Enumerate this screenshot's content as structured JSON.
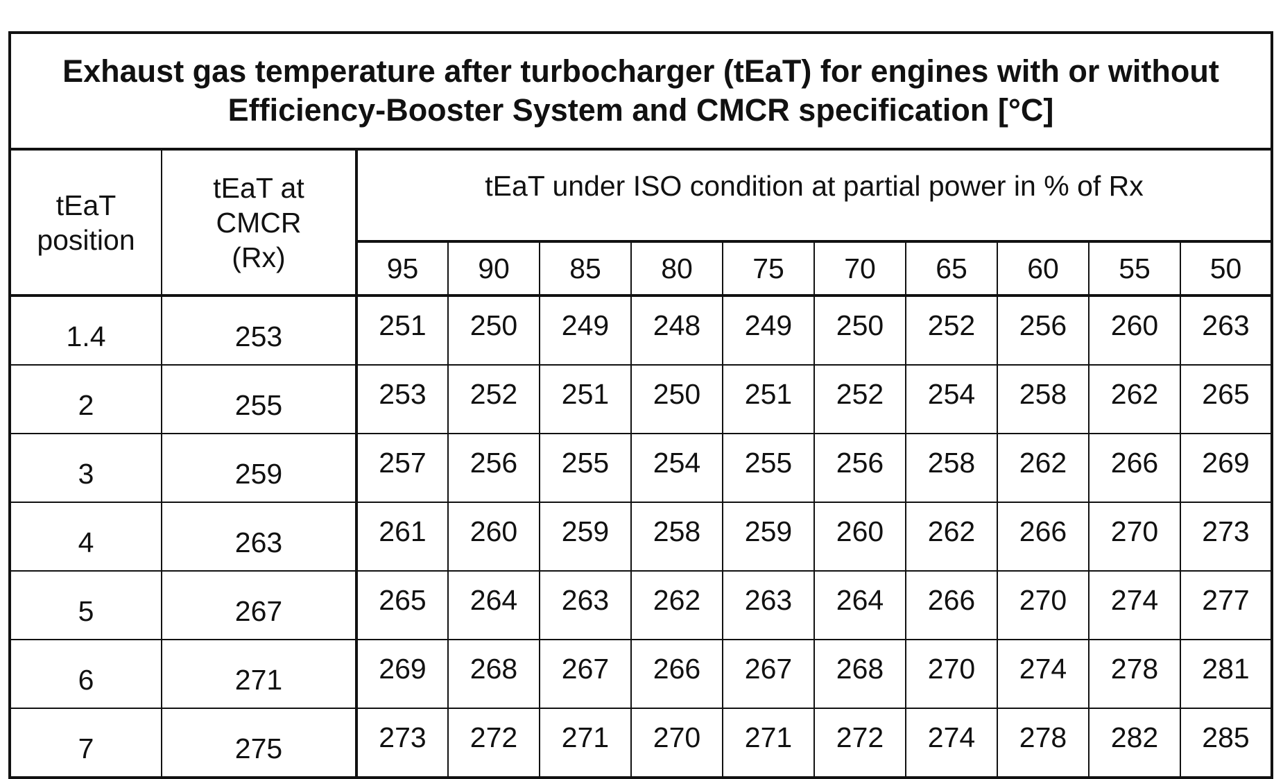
{
  "title": "Exhaust gas temperature after turbocharger (tEaT) for engines with or without Efficiency-Booster System and CMCR specification [°C]",
  "table": {
    "headers": {
      "position": "tEaT position",
      "cmcr": "tEaT at CMCR (Rx)",
      "partial": "tEaT under ISO condition at partial power in % of Rx"
    },
    "loads": [
      95,
      90,
      85,
      80,
      75,
      70,
      65,
      60,
      55,
      50
    ],
    "rows": [
      {
        "position": 1.4,
        "cmcr": 253,
        "values": [
          251,
          250,
          249,
          248,
          249,
          250,
          252,
          256,
          260,
          263
        ]
      },
      {
        "position": 2,
        "cmcr": 255,
        "values": [
          253,
          252,
          251,
          250,
          251,
          252,
          254,
          258,
          262,
          265
        ]
      },
      {
        "position": 3,
        "cmcr": 259,
        "values": [
          257,
          256,
          255,
          254,
          255,
          256,
          258,
          262,
          266,
          269
        ]
      },
      {
        "position": 4,
        "cmcr": 263,
        "values": [
          261,
          260,
          259,
          258,
          259,
          260,
          262,
          266,
          270,
          273
        ]
      },
      {
        "position": 5,
        "cmcr": 267,
        "values": [
          265,
          264,
          263,
          262,
          263,
          264,
          266,
          270,
          274,
          277
        ]
      },
      {
        "position": 6,
        "cmcr": 271,
        "values": [
          269,
          268,
          267,
          266,
          267,
          268,
          270,
          274,
          278,
          281
        ]
      },
      {
        "position": 7,
        "cmcr": 275,
        "values": [
          273,
          272,
          271,
          270,
          271,
          272,
          274,
          278,
          282,
          285
        ]
      }
    ]
  }
}
